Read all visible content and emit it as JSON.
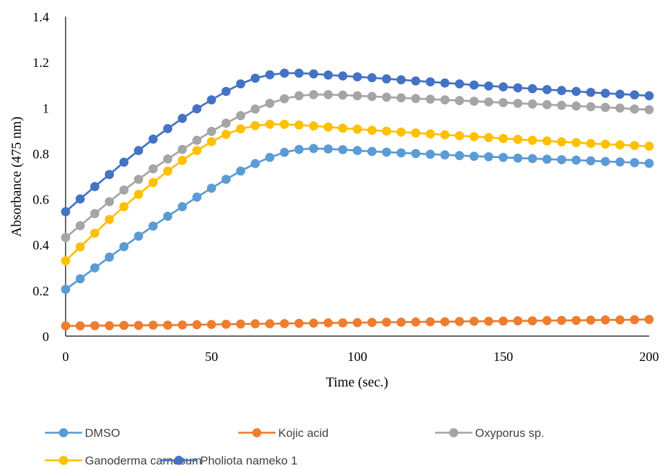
{
  "chart_data": {
    "type": "line",
    "title": "",
    "xlabel": "Time (sec.)",
    "ylabel": "Absorbance (475 nm)",
    "xlim": [
      0,
      200
    ],
    "ylim": [
      0,
      1.4
    ],
    "xticks": [
      0,
      50,
      100,
      150,
      200
    ],
    "xtick_labels": [
      "0",
      "50",
      "100",
      "150",
      "200"
    ],
    "yticks": [
      0,
      0.2,
      0.4,
      0.6,
      0.8,
      1,
      1.2,
      1.4
    ],
    "ytick_labels": [
      "0",
      "0.2",
      "0.4",
      "0.6",
      "0.8",
      "1",
      "1.2",
      "1.4"
    ],
    "grid": false,
    "legend": "bottom",
    "x": [
      0,
      5,
      10,
      15,
      20,
      25,
      30,
      35,
      40,
      45,
      50,
      55,
      60,
      65,
      70,
      75,
      80,
      85,
      90,
      95,
      100,
      105,
      110,
      115,
      120,
      125,
      130,
      135,
      140,
      145,
      150,
      155,
      160,
      165,
      170,
      175,
      180,
      185,
      190,
      195,
      200
    ],
    "series": [
      {
        "name": "DMSO",
        "color": "#5B9BD5",
        "values": [
          0.205,
          0.251,
          0.299,
          0.346,
          0.392,
          0.438,
          0.482,
          0.525,
          0.567,
          0.609,
          0.648,
          0.687,
          0.723,
          0.756,
          0.783,
          0.805,
          0.818,
          0.822,
          0.82,
          0.817,
          0.813,
          0.809,
          0.806,
          0.803,
          0.8,
          0.797,
          0.794,
          0.791,
          0.788,
          0.786,
          0.783,
          0.78,
          0.778,
          0.775,
          0.773,
          0.771,
          0.768,
          0.765,
          0.763,
          0.76,
          0.757
        ]
      },
      {
        "name": "Kojic acid",
        "color": "#ED7D31",
        "values": [
          0.045,
          0.045,
          0.046,
          0.046,
          0.047,
          0.047,
          0.048,
          0.048,
          0.049,
          0.05,
          0.051,
          0.052,
          0.053,
          0.054,
          0.054,
          0.055,
          0.056,
          0.057,
          0.058,
          0.058,
          0.059,
          0.06,
          0.061,
          0.061,
          0.062,
          0.063,
          0.063,
          0.064,
          0.065,
          0.065,
          0.066,
          0.067,
          0.067,
          0.068,
          0.069,
          0.069,
          0.07,
          0.071,
          0.071,
          0.072,
          0.073
        ]
      },
      {
        "name": "Oxyporus sp.",
        "color": "#A5A5A5",
        "values": [
          0.432,
          0.484,
          0.537,
          0.589,
          0.64,
          0.687,
          0.733,
          0.776,
          0.818,
          0.858,
          0.897,
          0.933,
          0.966,
          0.995,
          1.02,
          1.04,
          1.053,
          1.058,
          1.058,
          1.056,
          1.053,
          1.05,
          1.047,
          1.044,
          1.041,
          1.038,
          1.035,
          1.032,
          1.029,
          1.026,
          1.023,
          1.02,
          1.017,
          1.014,
          1.011,
          1.008,
          1.005,
          1.002,
          0.999,
          0.995,
          0.992
        ]
      },
      {
        "name": "Ganoderma carnosum",
        "color": "#FFC000",
        "values": [
          0.33,
          0.391,
          0.451,
          0.511,
          0.567,
          0.621,
          0.673,
          0.723,
          0.77,
          0.813,
          0.852,
          0.884,
          0.908,
          0.922,
          0.928,
          0.928,
          0.925,
          0.921,
          0.916,
          0.911,
          0.907,
          0.902,
          0.898,
          0.894,
          0.89,
          0.886,
          0.882,
          0.878,
          0.874,
          0.87,
          0.866,
          0.862,
          0.858,
          0.855,
          0.851,
          0.848,
          0.844,
          0.841,
          0.838,
          0.835,
          0.832
        ]
      },
      {
        "name": "Pholiota nameko 1",
        "color": "#4472C4",
        "values": [
          0.545,
          0.601,
          0.655,
          0.708,
          0.762,
          0.813,
          0.863,
          0.909,
          0.954,
          0.996,
          1.035,
          1.072,
          1.105,
          1.13,
          1.145,
          1.152,
          1.152,
          1.149,
          1.144,
          1.14,
          1.136,
          1.132,
          1.127,
          1.123,
          1.118,
          1.114,
          1.109,
          1.105,
          1.1,
          1.096,
          1.092,
          1.088,
          1.084,
          1.08,
          1.076,
          1.072,
          1.068,
          1.064,
          1.06,
          1.057,
          1.053
        ]
      }
    ]
  }
}
